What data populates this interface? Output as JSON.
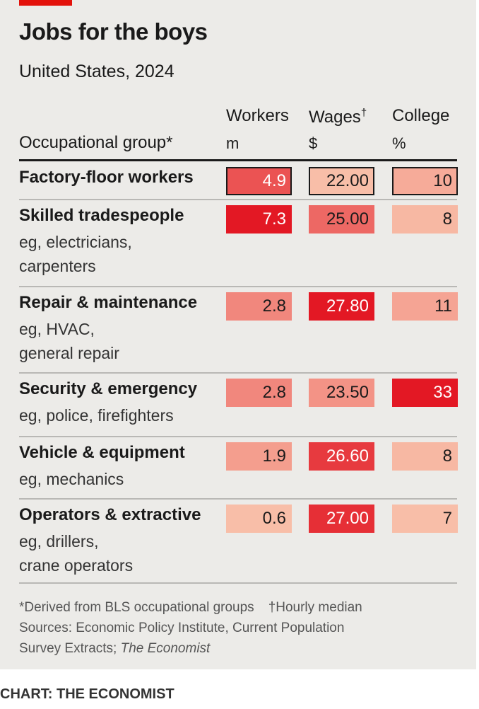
{
  "header": {
    "title": "Jobs for the boys",
    "subtitle": "United States, 2024"
  },
  "columns": {
    "group_label": "Occupational group*",
    "workers": {
      "label": "Workers",
      "unit": "m"
    },
    "wages": {
      "label": "Wages",
      "mark": "†",
      "unit": "$"
    },
    "college": {
      "label": "College",
      "unit": "%"
    }
  },
  "colors": {
    "panel": "#ecebe8",
    "accent": "#e3120b"
  },
  "chart_data": {
    "type": "table",
    "title": "Jobs for the boys",
    "subtitle": "United States, 2024",
    "columns": [
      "Workers (m)",
      "Wages ($)",
      "College (%)"
    ],
    "rows": [
      {
        "group": "Factory-floor workers",
        "note": "",
        "workers": "4.9",
        "wages": "22.00",
        "college": "10"
      },
      {
        "group": "Skilled tradespeople",
        "note": "eg, electricians,\ncarpenters",
        "workers": "7.3",
        "wages": "25.00",
        "college": "8"
      },
      {
        "group": "Repair & maintenance",
        "note": "eg, HVAC,\ngeneral repair",
        "workers": "2.8",
        "wages": "27.80",
        "college": "11"
      },
      {
        "group": "Security & emergency",
        "note": "eg, police, firefighters",
        "workers": "2.8",
        "wages": "23.50",
        "college": "33"
      },
      {
        "group": "Vehicle & equipment",
        "note": "eg, mechanics",
        "workers": "1.9",
        "wages": "26.60",
        "college": "8"
      },
      {
        "group": "Operators & extractive",
        "note": "eg, drillers,\ncrane operators",
        "workers": "0.6",
        "wages": "27.00",
        "college": "7"
      }
    ]
  },
  "footnotes": {
    "derived": "*Derived from BLS occupational groups",
    "hourly": "†Hourly median",
    "sources_line1": "Sources: Economic Policy Institute, Current Population",
    "sources_line2": "Survey Extracts; ",
    "sources_italic": "The Economist"
  },
  "credit": "CHART: THE ECONOMIST"
}
